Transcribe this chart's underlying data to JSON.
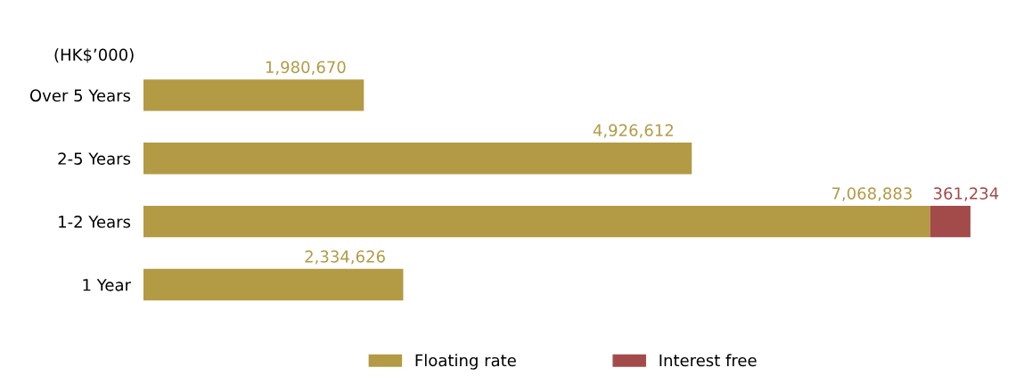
{
  "chart_data": {
    "type": "bar",
    "orientation": "horizontal",
    "stacked": true,
    "legend": "bottom",
    "grid": false,
    "annotations": [
      "(HK$’000)"
    ],
    "categories": [
      "Over 5 Years",
      "2-5 Years",
      "1-2 Years",
      "1 Year"
    ],
    "series": [
      {
        "name": "Floating rate",
        "color": "#b39a45",
        "values": [
          1980670,
          4926612,
          7068883,
          2334626
        ],
        "value_labels": [
          "1,980,670",
          "4,926,612",
          "7,068,883",
          "2,334,626"
        ]
      },
      {
        "name": "Interest free",
        "color": "#a34a4a",
        "values": [
          null,
          null,
          361234,
          null
        ],
        "value_labels": [
          null,
          null,
          "361,234",
          null
        ]
      }
    ]
  }
}
